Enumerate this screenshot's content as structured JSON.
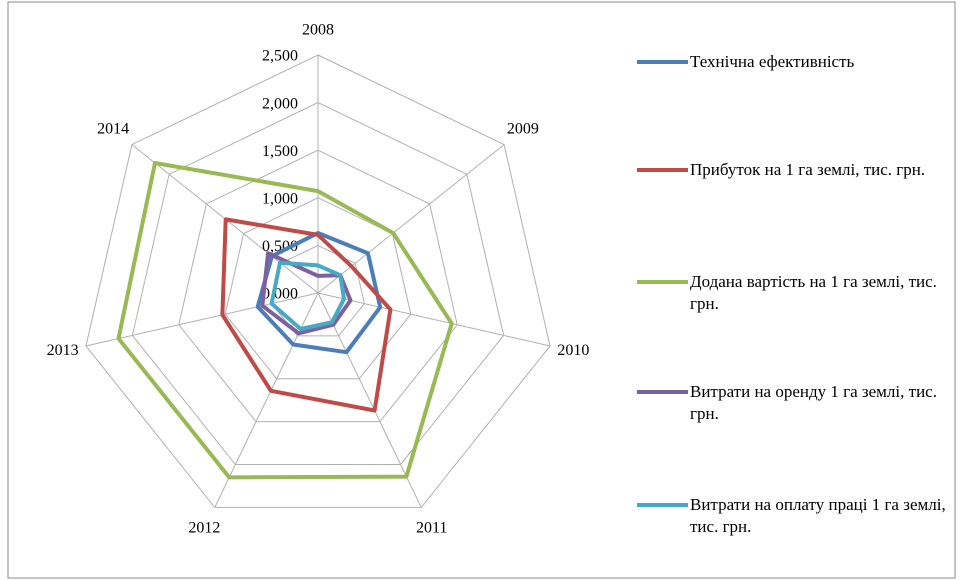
{
  "chart_data": {
    "type": "radar",
    "categories": [
      "2008",
      "2009",
      "2010",
      "2011",
      "2012",
      "2013",
      "2014"
    ],
    "ylim": [
      0,
      2.5
    ],
    "yticks": [
      {
        "value": 0,
        "label": "0,000"
      },
      {
        "value": 0.5,
        "label": "0,500"
      },
      {
        "value": 1,
        "label": "1,000"
      },
      {
        "value": 1.5,
        "label": "1,500"
      },
      {
        "value": 2,
        "label": "2,000"
      },
      {
        "value": 2.5,
        "label": "2,500"
      }
    ],
    "grid": true,
    "legend": "right",
    "series": [
      {
        "name": "Технічна ефективність",
        "color": "#4a7ebb",
        "values": [
          0.63,
          0.67,
          0.67,
          0.69,
          0.6,
          0.65,
          0.62
        ]
      },
      {
        "name": "Прибуток на 1 га землі, тис. грн.",
        "color": "#be4b48",
        "values": [
          0.61,
          0.45,
          0.78,
          1.37,
          1.14,
          1.03,
          1.24
        ]
      },
      {
        "name": "Додана вартість на 1 га землі, тис. грн.",
        "color": "#98b954",
        "values": [
          1.07,
          1.01,
          1.44,
          2.14,
          2.15,
          2.15,
          2.19
        ]
      },
      {
        "name": "Витрати на оренду 1 га землі, тис. грн.",
        "color": "#7d60a0",
        "values": [
          0.18,
          0.3,
          0.35,
          0.37,
          0.47,
          0.6,
          0.67
        ]
      },
      {
        "name": "Витрати на оплату праці 1 га землі, тис. грн.",
        "color": "#46aac5",
        "values": [
          0.29,
          0.3,
          0.28,
          0.34,
          0.42,
          0.5,
          0.51
        ]
      }
    ]
  }
}
